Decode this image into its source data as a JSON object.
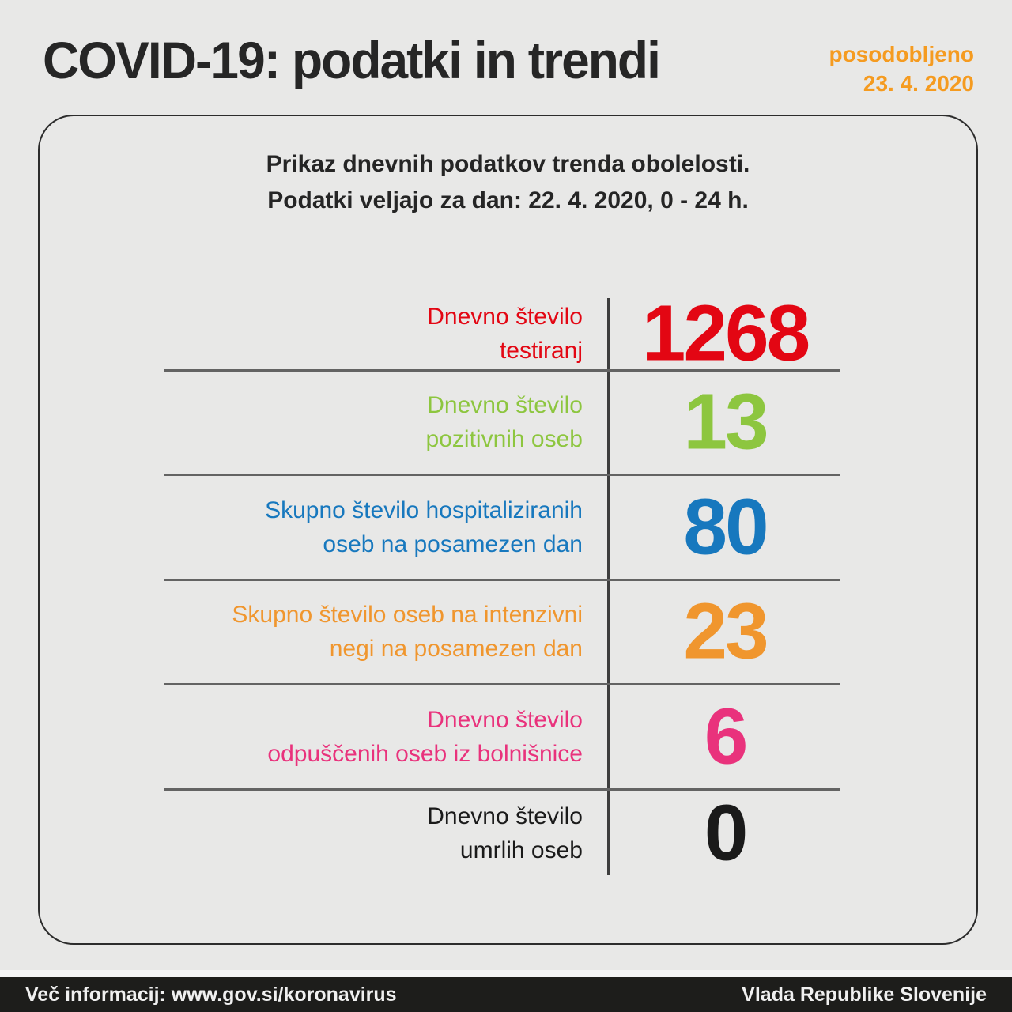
{
  "header": {
    "title": "COVID-19: podatki in trendi",
    "updated_label": "posodobljeno",
    "updated_date": "23. 4. 2020",
    "accent_color": "#f59b20"
  },
  "card": {
    "intro_line1": "Prikaz dnevnih podatkov trenda obolelosti.",
    "intro_line2": "Podatki veljajo za dan: 22. 4. 2020, 0 - 24 h.",
    "rows": [
      {
        "label_line1": "Dnevno število",
        "label_line2": "testiranj",
        "value": "1268",
        "color": "#e30613"
      },
      {
        "label_line1": "Dnevno število",
        "label_line2": "pozitivnih oseb",
        "value": "13",
        "color": "#8dc63f"
      },
      {
        "label_line1": "Skupno število hospitaliziranih",
        "label_line2": "oseb na posamezen dan",
        "value": "80",
        "color": "#1778be"
      },
      {
        "label_line1": "Skupno število oseb na intenzivni",
        "label_line2": "negi na posamezen dan",
        "value": "23",
        "color": "#f0962e"
      },
      {
        "label_line1": "Dnevno število",
        "label_line2": "odpuščenih oseb iz bolnišnice",
        "value": "6",
        "color": "#e9327c"
      },
      {
        "label_line1": "Dnevno število",
        "label_line2": "umrlih oseb",
        "value": "0",
        "color": "#1a1a1a"
      }
    ]
  },
  "footer": {
    "info_text": "Več informacij: www.gov.si/koronavirus",
    "org_text": "Vlada Republike Slovenije",
    "bg_color": "#1d1d1b"
  },
  "chart_data": {
    "type": "table",
    "title": "COVID-19: podatki in trendi",
    "subtitle": "Prikaz dnevnih podatkov trenda obolelosti. Podatki veljajo za dan: 22. 4. 2020, 0 - 24 h.",
    "updated": "23. 4. 2020",
    "categories": [
      "Dnevno število testiranj",
      "Dnevno število pozitivnih oseb",
      "Skupno število hospitaliziranih oseb na posamezen dan",
      "Skupno število oseb na intenzivni negi na posamezen dan",
      "Dnevno število odpuščenih oseb iz bolnišnice",
      "Dnevno število umrlih oseb"
    ],
    "values": [
      1268,
      13,
      80,
      23,
      6,
      0
    ],
    "value_colors": [
      "#e30613",
      "#8dc63f",
      "#1778be",
      "#f0962e",
      "#e9327c",
      "#1a1a1a"
    ]
  }
}
